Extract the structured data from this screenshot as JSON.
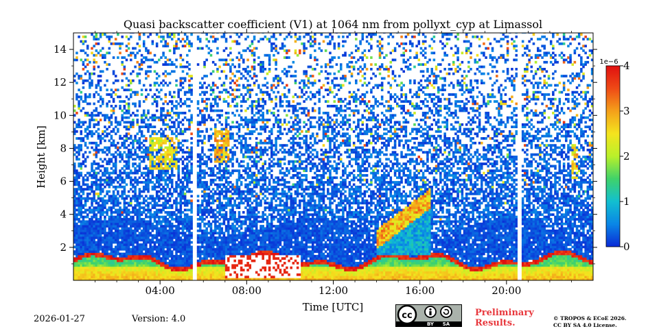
{
  "chart_data": {
    "type": "heatmap",
    "title": "Quasi backscatter coefficient (V1) at 1064 nm from pollyxt_cyp at Limassol",
    "xlabel": "Time [UTC]",
    "ylabel": "Height [km]",
    "xlim_hours": [
      0,
      24
    ],
    "ylim_km": [
      0,
      15
    ],
    "x_ticks": [
      {
        "hour": 4,
        "label": "04:00"
      },
      {
        "hour": 8,
        "label": "08:00"
      },
      {
        "hour": 12,
        "label": "12:00"
      },
      {
        "hour": 16,
        "label": "16:00"
      },
      {
        "hour": 20,
        "label": "20:00"
      }
    ],
    "y_ticks": [
      {
        "km": 2,
        "label": "2"
      },
      {
        "km": 4,
        "label": "4"
      },
      {
        "km": 6,
        "label": "6"
      },
      {
        "km": 8,
        "label": "8"
      },
      {
        "km": 10,
        "label": "10"
      },
      {
        "km": 12,
        "label": "12"
      },
      {
        "km": 14,
        "label": "14"
      }
    ],
    "colorbar": {
      "range": [
        0,
        4
      ],
      "scale_label": "1e−6",
      "ticks": [
        {
          "value": 0,
          "label": "0"
        },
        {
          "value": 1,
          "label": "1"
        },
        {
          "value": 2,
          "label": "2"
        },
        {
          "value": 3,
          "label": "3"
        },
        {
          "value": 4,
          "label": "4"
        }
      ],
      "colors": [
        "#0a2ad6",
        "#0a86e6",
        "#12bfd0",
        "#3fd26a",
        "#b9f02a",
        "#f4e41e",
        "#f4a01a",
        "#ee4a16",
        "#e01010"
      ]
    },
    "data_gaps_hours": [
      5.6,
      20.6
    ],
    "layers": [
      {
        "name": "boundary layer",
        "from_hour": 0,
        "to_hour": 24,
        "top_km": 1.6,
        "typical_value": 1.8
      },
      {
        "name": "dust layer",
        "from_hour": 7,
        "to_hour": 10.5,
        "top_km": 1.5,
        "typical_value": 3.8
      },
      {
        "name": "elevated aerosol plume",
        "from_hour": 14,
        "to_hour": 16.5,
        "top_km": 5.0,
        "typical_value": 2.8
      },
      {
        "name": "cirrus/aerosol patch",
        "from_hour": 3.5,
        "to_hour": 4.8,
        "top_km": 8.5,
        "typical_value": 2.5
      },
      {
        "name": "cirrus/aerosol patch",
        "from_hour": 6.5,
        "to_hour": 7.2,
        "top_km": 9.0,
        "typical_value": 2.8
      },
      {
        "name": "cirrus/aerosol patch",
        "from_hour": 23,
        "to_hour": 23.3,
        "top_km": 8.0,
        "typical_value": 2.5
      }
    ]
  },
  "footer": {
    "date": "2026-01-27",
    "version": "Version: 4.0",
    "preliminary_line1": "Preliminary",
    "preliminary_line2": "Results.",
    "copyright_line1": "© TROPOS & ECoE 2026.",
    "copyright_line2": "CC BY SA 4.0 License.",
    "cc_labels": {
      "cc": "cc",
      "by": "BY",
      "sa": "SA"
    }
  }
}
